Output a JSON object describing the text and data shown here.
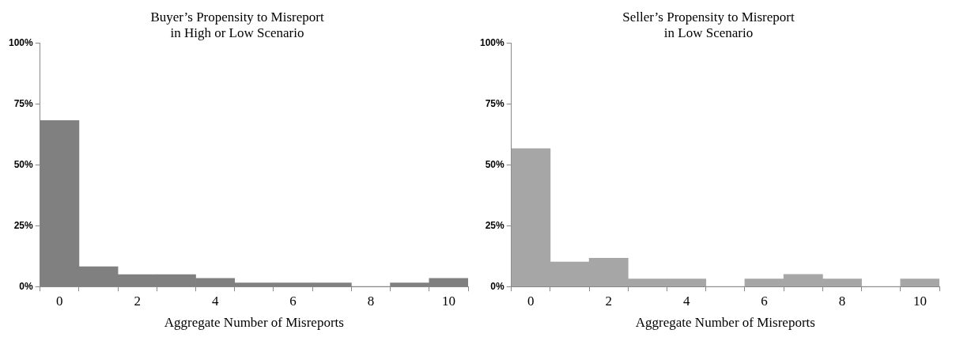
{
  "chart_data": [
    {
      "type": "bar",
      "title": "Buyer’s Propensity to Misreport\nin High or Low Scenario",
      "xlabel": "Aggregate Number of Misreports",
      "categories": [
        "0",
        null,
        "2",
        null,
        "4",
        null,
        "6",
        null,
        "8",
        null,
        "10"
      ],
      "values": [
        68.3,
        8.2,
        4.9,
        4.9,
        3.4,
        1.5,
        1.5,
        1.5,
        0,
        1.5,
        3.4
      ],
      "color": "#808080",
      "ylim": [
        0,
        100
      ],
      "yticks": [
        {
          "value": 0,
          "label": "0%"
        },
        {
          "value": 25,
          "label": "25%"
        },
        {
          "value": 50,
          "label": "50%"
        },
        {
          "value": 75,
          "label": "75%"
        },
        {
          "value": 100,
          "label": "100%"
        }
      ],
      "grid": false,
      "legend": false
    },
    {
      "type": "bar",
      "title": "Seller’s Propensity to Misreport\nin Low Scenario",
      "xlabel": "Aggregate Number of Misreports",
      "categories": [
        "0",
        null,
        "2",
        null,
        "4",
        null,
        "6",
        null,
        "8",
        null,
        "10"
      ],
      "values": [
        56.7,
        10.1,
        11.7,
        3.1,
        3.1,
        0,
        3.1,
        5.0,
        3.1,
        0,
        3.1
      ],
      "color": "#a6a6a6",
      "ylim": [
        0,
        100
      ],
      "yticks": [
        {
          "value": 0,
          "label": "0%"
        },
        {
          "value": 25,
          "label": "25%"
        },
        {
          "value": 50,
          "label": "50%"
        },
        {
          "value": 75,
          "label": "75%"
        },
        {
          "value": 100,
          "label": "100%"
        }
      ],
      "grid": false,
      "legend": false
    }
  ]
}
